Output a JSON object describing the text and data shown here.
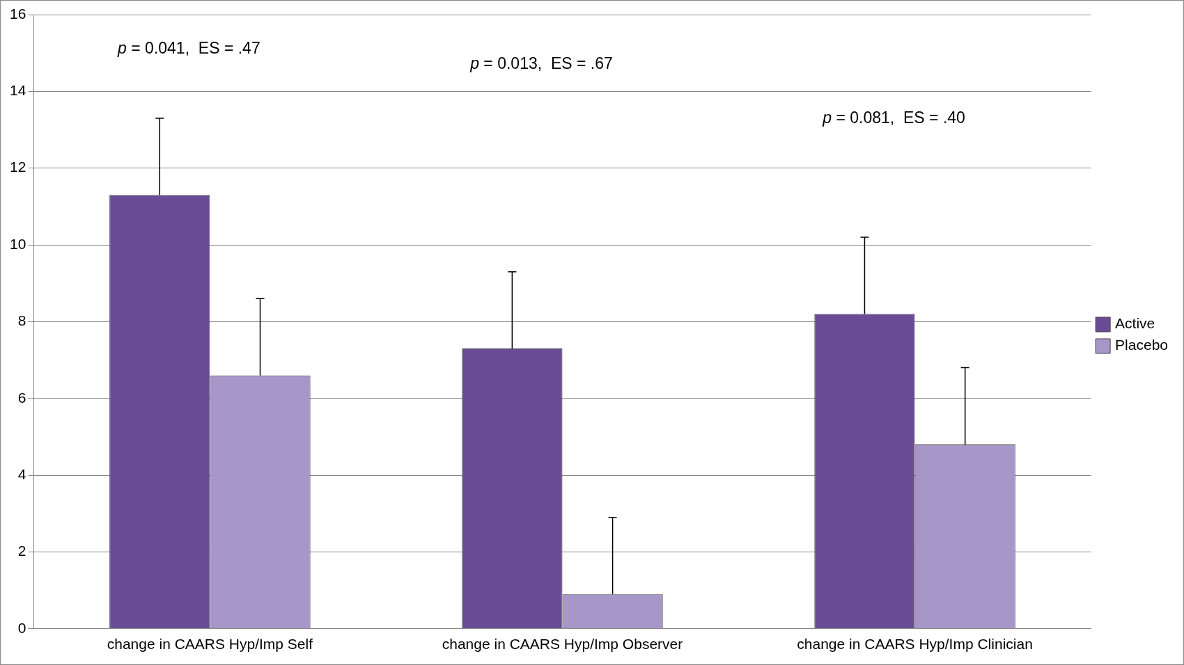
{
  "chart_data": {
    "type": "bar",
    "categories": [
      "change in CAARS Hyp/Imp Self",
      "change in CAARS Hyp/Imp Observer",
      "change in CAARS Hyp/Imp Clinician"
    ],
    "series": [
      {
        "name": "Active",
        "color": "#6a4c96",
        "values": [
          11.3,
          7.3,
          8.2
        ],
        "errors": [
          [
            11.3,
            13.3
          ],
          [
            7.3,
            9.3
          ],
          [
            8.2,
            10.2
          ]
        ]
      },
      {
        "name": "Placebo",
        "color": "#a796c8",
        "values": [
          6.6,
          0.9,
          4.8
        ],
        "errors": [
          [
            6.6,
            8.6
          ],
          [
            0.9,
            2.9
          ],
          [
            4.8,
            6.8
          ]
        ]
      }
    ],
    "ylim": [
      0,
      16
    ],
    "yticks": [
      0,
      2,
      4,
      6,
      8,
      10,
      12,
      14,
      16
    ],
    "grid": "y",
    "legend": "right",
    "annotations": [
      "p = 0.041,  ES = .47",
      "p = 0.013,  ES = .67",
      "p = 0.081,  ES = .40"
    ]
  }
}
